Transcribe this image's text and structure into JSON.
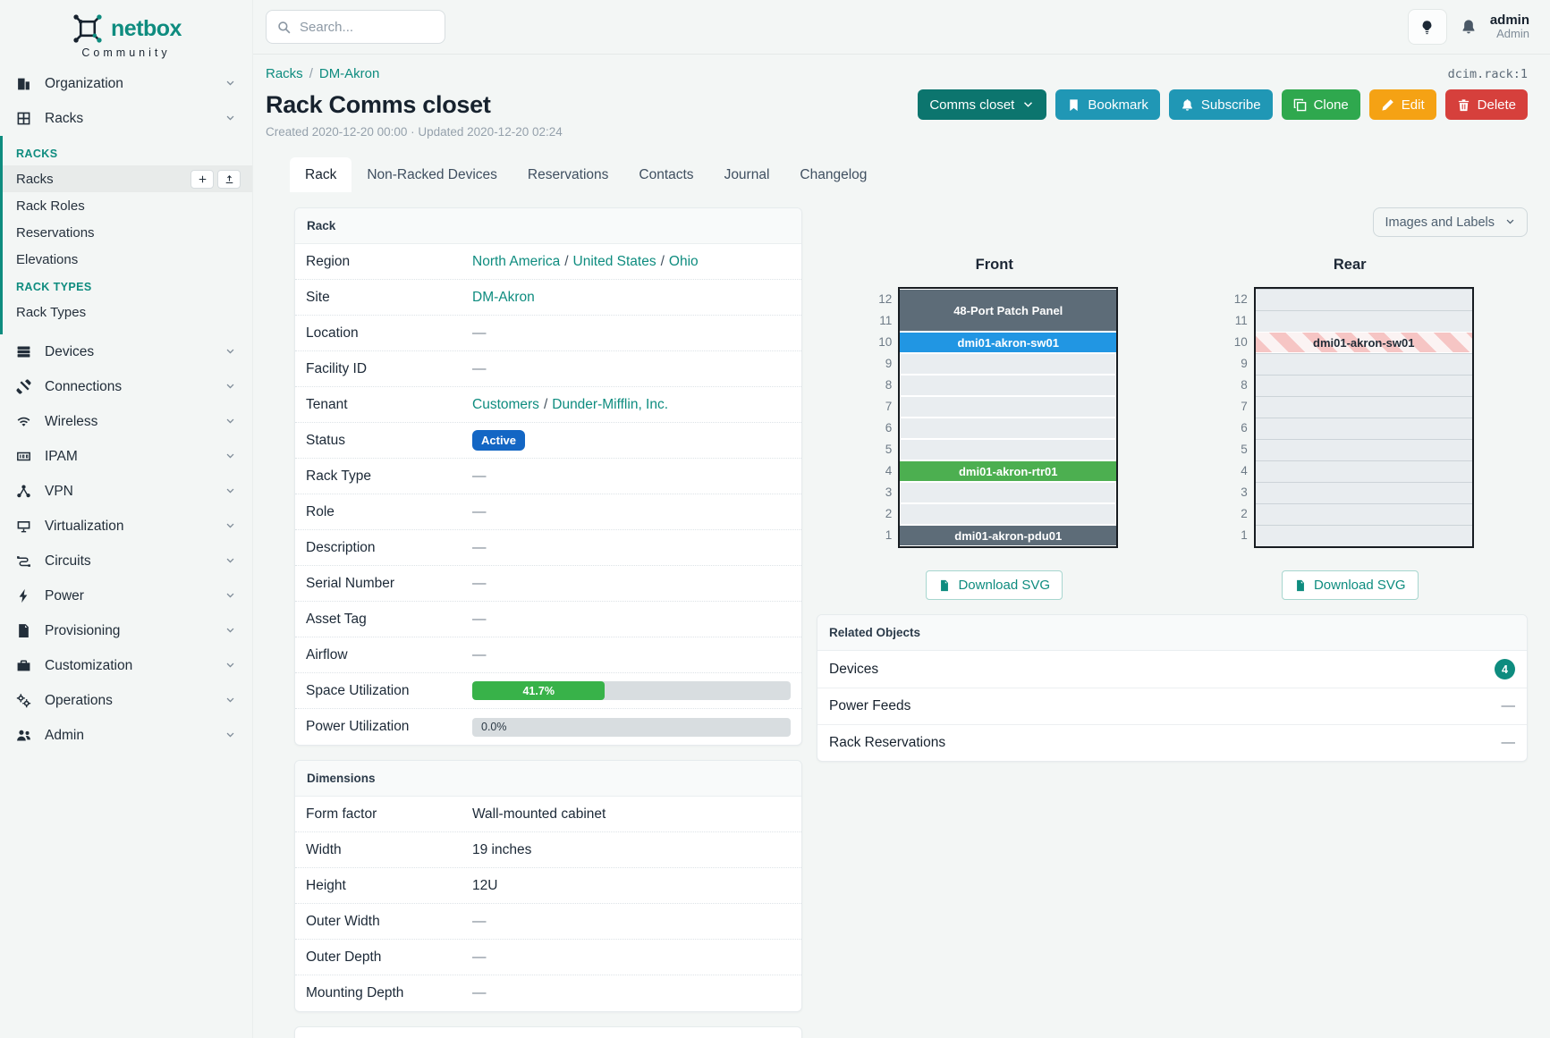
{
  "brand": {
    "name": "netbox",
    "subtitle": "Community"
  },
  "topbar": {
    "search_placeholder": "Search...",
    "user": {
      "name": "admin",
      "role": "Admin"
    }
  },
  "sidebar": {
    "top_items": [
      {
        "label": "Organization",
        "icon": "building-icon"
      },
      {
        "label": "Racks",
        "icon": "rack-icon"
      }
    ],
    "racks_menu": {
      "sections": [
        {
          "header": "RACKS",
          "items": [
            {
              "label": "Racks",
              "active": true,
              "actions": [
                {
                  "name": "add",
                  "icon": "plus-icon"
                },
                {
                  "name": "import",
                  "icon": "upload-icon"
                }
              ]
            },
            {
              "label": "Rack Roles"
            },
            {
              "label": "Reservations"
            },
            {
              "label": "Elevations"
            }
          ]
        },
        {
          "header": "RACK TYPES",
          "items": [
            {
              "label": "Rack Types"
            }
          ]
        }
      ]
    },
    "bottom_items": [
      {
        "label": "Devices",
        "icon": "devices-icon"
      },
      {
        "label": "Connections",
        "icon": "connections-icon"
      },
      {
        "label": "Wireless",
        "icon": "wireless-icon"
      },
      {
        "label": "IPAM",
        "icon": "ipam-icon"
      },
      {
        "label": "VPN",
        "icon": "vpn-icon"
      },
      {
        "label": "Virtualization",
        "icon": "virtualization-icon"
      },
      {
        "label": "Circuits",
        "icon": "circuits-icon"
      },
      {
        "label": "Power",
        "icon": "power-icon"
      },
      {
        "label": "Provisioning",
        "icon": "provisioning-icon"
      },
      {
        "label": "Customization",
        "icon": "customization-icon"
      },
      {
        "label": "Operations",
        "icon": "operations-icon"
      },
      {
        "label": "Admin",
        "icon": "admin-icon"
      }
    ]
  },
  "page": {
    "breadcrumb": [
      "Racks",
      "DM-Akron"
    ],
    "separator": "/",
    "object_id": "dcim.rack:1",
    "title": "Rack Comms closet",
    "meta": "Created 2020-12-20 00:00 · Updated 2020-12-20 02:24"
  },
  "actions": [
    {
      "label": "Comms closet",
      "style": "closet",
      "icon": "chevron-down-icon"
    },
    {
      "label": "Bookmark",
      "style": "info",
      "icon": "bookmark-icon"
    },
    {
      "label": "Subscribe",
      "style": "info",
      "icon": "bell-plus-icon"
    },
    {
      "label": "Clone",
      "style": "success",
      "icon": "copy-icon"
    },
    {
      "label": "Edit",
      "style": "warning",
      "icon": "pencil-icon"
    },
    {
      "label": "Delete",
      "style": "danger",
      "icon": "trash-icon"
    }
  ],
  "tabs": [
    {
      "label": "Rack",
      "active": true
    },
    {
      "label": "Non-Racked Devices"
    },
    {
      "label": "Reservations"
    },
    {
      "label": "Contacts"
    },
    {
      "label": "Journal"
    },
    {
      "label": "Changelog"
    }
  ],
  "rack_panel": {
    "title": "Rack",
    "rows": [
      {
        "label": "Region",
        "type": "links",
        "links": [
          "North America",
          "United States",
          "Ohio"
        ]
      },
      {
        "label": "Site",
        "type": "links",
        "links": [
          "DM-Akron"
        ]
      },
      {
        "label": "Location",
        "type": "empty",
        "value": "—"
      },
      {
        "label": "Facility ID",
        "type": "empty",
        "value": "—"
      },
      {
        "label": "Tenant",
        "type": "links",
        "links": [
          "Customers",
          "Dunder-Mifflin, Inc."
        ]
      },
      {
        "label": "Status",
        "type": "badge",
        "value": "Active"
      },
      {
        "label": "Rack Type",
        "type": "empty",
        "value": "—"
      },
      {
        "label": "Role",
        "type": "empty",
        "value": "—"
      },
      {
        "label": "Description",
        "type": "empty",
        "value": "—"
      },
      {
        "label": "Serial Number",
        "type": "empty",
        "value": "—"
      },
      {
        "label": "Asset Tag",
        "type": "empty",
        "value": "—"
      },
      {
        "label": "Airflow",
        "type": "empty",
        "value": "—"
      },
      {
        "label": "Space Utilization",
        "type": "progress",
        "percent": 41.7,
        "text": "41.7%",
        "variant": "green"
      },
      {
        "label": "Power Utilization",
        "type": "progress",
        "percent": 0,
        "text": "0.0%",
        "variant": "empty"
      }
    ]
  },
  "dimensions_panel": {
    "title": "Dimensions",
    "rows": [
      {
        "label": "Form factor",
        "type": "text",
        "value": "Wall-mounted cabinet"
      },
      {
        "label": "Width",
        "type": "text",
        "value": "19 inches"
      },
      {
        "label": "Height",
        "type": "text",
        "value": "12U"
      },
      {
        "label": "Outer Width",
        "type": "empty",
        "value": "—"
      },
      {
        "label": "Outer Depth",
        "type": "empty",
        "value": "—"
      },
      {
        "label": "Mounting Depth",
        "type": "empty",
        "value": "—"
      }
    ]
  },
  "elevations": {
    "display_selector": "Images and Labels",
    "download_label": "Download SVG",
    "units": 12,
    "views": [
      {
        "title": "Front",
        "slot_style": "gapped",
        "devices": [
          {
            "top_unit": 12,
            "u_height": 2,
            "name": "48-Port Patch Panel",
            "color": "#5d6c78",
            "text_color": "#ffffff"
          },
          {
            "top_unit": 10,
            "u_height": 1,
            "name": "dmi01-akron-sw01",
            "color": "#2196e3",
            "text_color": "#ffffff"
          },
          {
            "top_unit": 4,
            "u_height": 1,
            "name": "dmi01-akron-rtr01",
            "color": "#4caf50",
            "text_color": "#ffffff"
          },
          {
            "top_unit": 1,
            "u_height": 1,
            "name": "dmi01-akron-pdu01",
            "color": "#5d6c78",
            "text_color": "#ffffff"
          }
        ]
      },
      {
        "title": "Rear",
        "slot_style": "lined",
        "devices": [
          {
            "top_unit": 10,
            "u_height": 1,
            "name": "dmi01-akron-sw01",
            "striped": true,
            "text_color": "#222d38"
          }
        ]
      }
    ]
  },
  "related_panel": {
    "title": "Related Objects",
    "rows": [
      {
        "label": "Devices",
        "badge": "4"
      },
      {
        "label": "Power Feeds",
        "value": "—"
      },
      {
        "label": "Rack Reservations",
        "value": "—"
      }
    ]
  },
  "colors": {
    "accent_teal": "#0e8c7f",
    "status_badge_blue": "#1366c4",
    "progress_green": "#38b249",
    "button_info_cyan": "#2097b5",
    "button_success_green": "#2fa84e",
    "button_warning_orange": "#f5a214",
    "button_danger_red": "#d6403c",
    "button_closet_teal": "#0c756e",
    "device_slate": "#5d6c78",
    "device_blue": "#2196e3",
    "device_green": "#4caf50"
  }
}
